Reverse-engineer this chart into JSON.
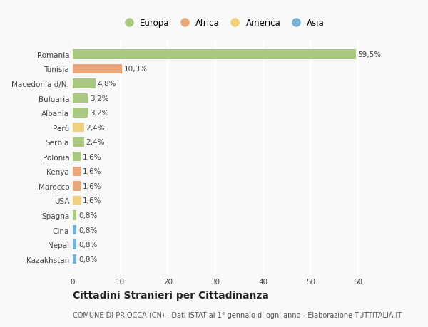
{
  "countries": [
    "Romania",
    "Tunisia",
    "Macedonia d/N.",
    "Bulgaria",
    "Albania",
    "Perù",
    "Serbia",
    "Polonia",
    "Kenya",
    "Marocco",
    "USA",
    "Spagna",
    "Cina",
    "Nepal",
    "Kazakhstan"
  ],
  "values": [
    59.5,
    10.3,
    4.8,
    3.2,
    3.2,
    2.4,
    2.4,
    1.6,
    1.6,
    1.6,
    1.6,
    0.8,
    0.8,
    0.8,
    0.8
  ],
  "labels": [
    "59,5%",
    "10,3%",
    "4,8%",
    "3,2%",
    "3,2%",
    "2,4%",
    "2,4%",
    "1,6%",
    "1,6%",
    "1,6%",
    "1,6%",
    "0,8%",
    "0,8%",
    "0,8%",
    "0,8%"
  ],
  "continents": [
    "Europa",
    "Africa",
    "Europa",
    "Europa",
    "Europa",
    "America",
    "Europa",
    "Europa",
    "Africa",
    "Africa",
    "America",
    "Europa",
    "Asia",
    "Asia",
    "Asia"
  ],
  "continent_colors": {
    "Europa": "#a8c97f",
    "Africa": "#e8a87c",
    "America": "#f0d080",
    "Asia": "#7ab0d4"
  },
  "legend_order": [
    "Europa",
    "Africa",
    "America",
    "Asia"
  ],
  "title": "Cittadini Stranieri per Cittadinanza",
  "subtitle": "COMUNE DI PRIOCCA (CN) - Dati ISTAT al 1° gennaio di ogni anno - Elaborazione TUTTITALIA.IT",
  "xlim": [
    0,
    63
  ],
  "xticks": [
    0,
    10,
    20,
    30,
    40,
    50,
    60
  ],
  "bg_color": "#f9f9f9",
  "grid_color": "#ffffff",
  "bar_height": 0.65,
  "label_fontsize": 7.5,
  "tick_fontsize": 7.5,
  "title_fontsize": 10,
  "subtitle_fontsize": 7
}
